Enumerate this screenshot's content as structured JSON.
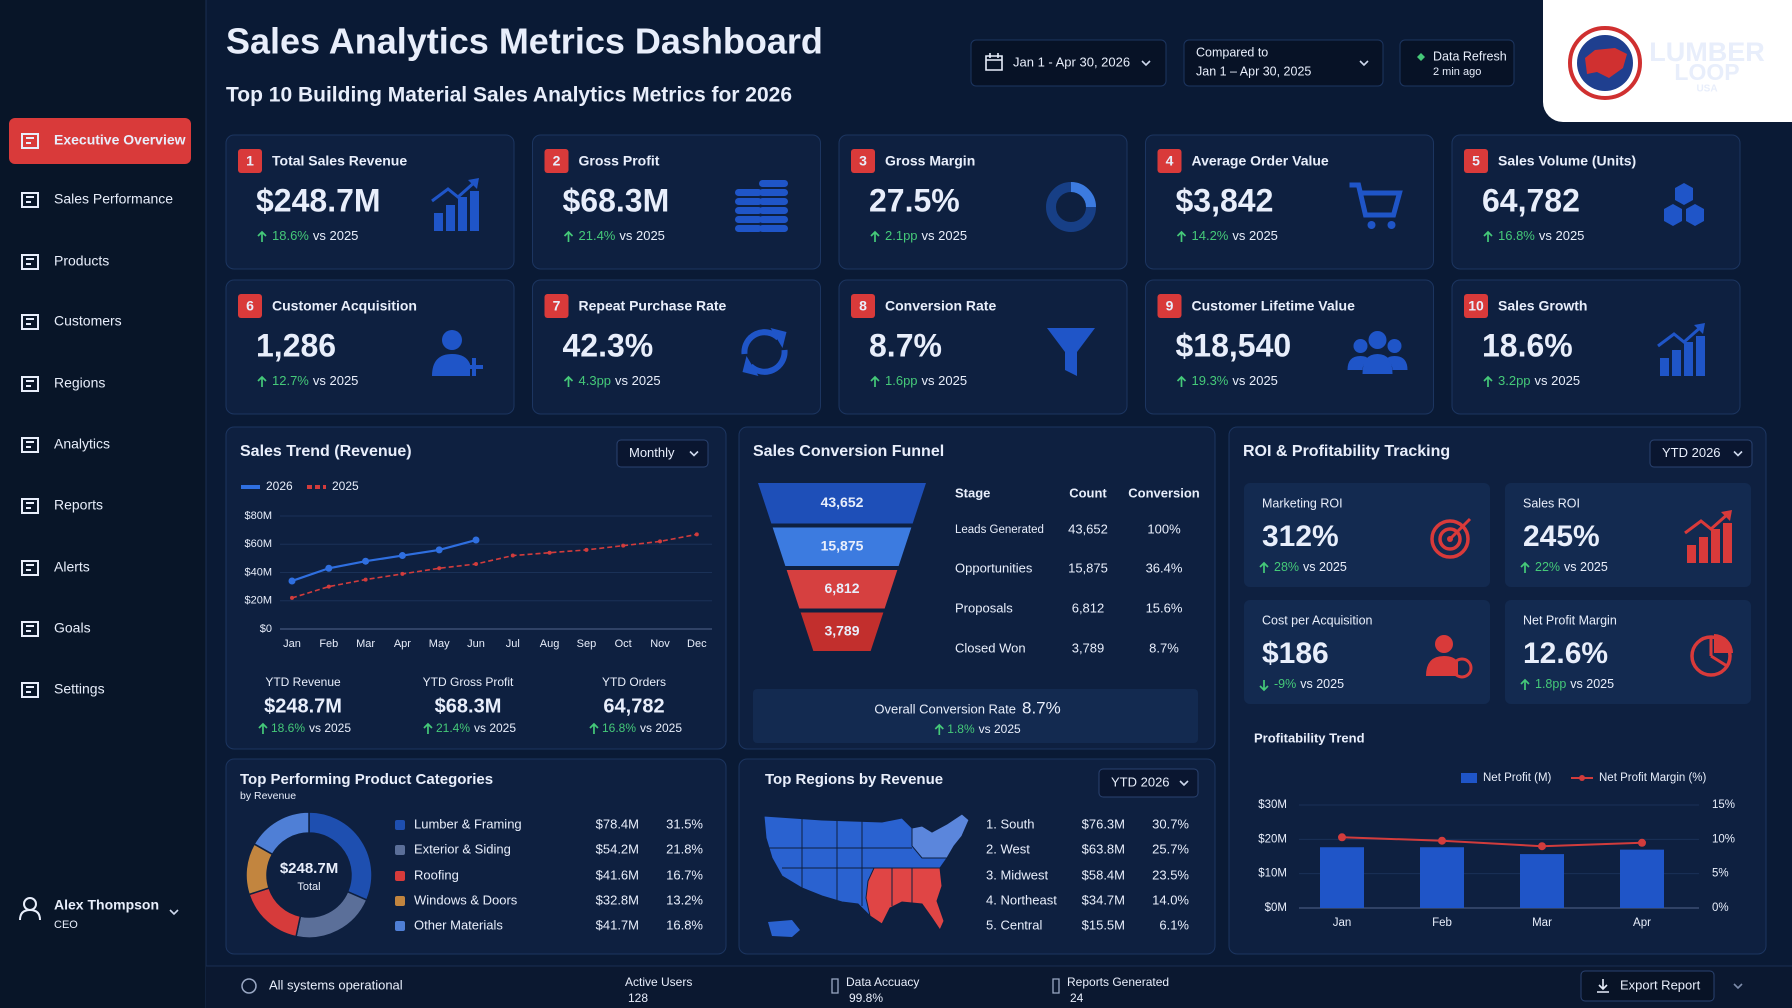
{
  "header": {
    "title": "Sales Analytics Metrics Dashboard",
    "subtitle": "Top 10 Building Material Sales Analytics Metrics for 2026",
    "date_range": "Jan 1 - Apr 30, 2026",
    "compared_label": "Compared to",
    "compared_range": "Jan 1 – Apr 30, 2025",
    "refresh_label": "Data Refresh",
    "refresh_time": "2 min ago"
  },
  "logo": {
    "brand_top": "LUMBER",
    "brand_bottom": "LOOP",
    "brand_sub": "USA"
  },
  "nav": {
    "items": [
      "Executive Overview",
      "Sales Performance",
      "Products",
      "Customers",
      "Regions",
      "Analytics",
      "Reports",
      "Alerts",
      "Goals",
      "Settings"
    ],
    "active": 0
  },
  "user": {
    "name": "Alex Thompson",
    "role": "CEO"
  },
  "kpis": [
    {
      "rank": 1,
      "label": "Total Sales Revenue",
      "value": "$248.7M",
      "change": "18.6%",
      "compare": "vs 2025"
    },
    {
      "rank": 2,
      "label": "Gross Profit",
      "value": "$68.3M",
      "change": "21.4%",
      "compare": "vs 2025"
    },
    {
      "rank": 3,
      "label": "Gross Margin",
      "value": "27.5%",
      "change": "2.1pp",
      "compare": "vs 2025"
    },
    {
      "rank": 4,
      "label": "Average Order Value",
      "value": "$3,842",
      "change": "14.2%",
      "compare": "vs 2025"
    },
    {
      "rank": 5,
      "label": "Sales Volume (Units)",
      "value": "64,782",
      "change": "16.8%",
      "compare": "vs 2025"
    },
    {
      "rank": 6,
      "label": "Customer Acquisition",
      "value": "1,286",
      "change": "12.7%",
      "compare": "vs 2025"
    },
    {
      "rank": 7,
      "label": "Repeat Purchase Rate",
      "value": "42.3%",
      "change": "4.3pp",
      "compare": "vs 2025"
    },
    {
      "rank": 8,
      "label": "Conversion Rate",
      "value": "8.7%",
      "change": "1.6pp",
      "compare": "vs 2025"
    },
    {
      "rank": 9,
      "label": "Customer Lifetime Value",
      "value": "$18,540",
      "change": "19.3%",
      "compare": "vs 2025"
    },
    {
      "rank": 10,
      "label": "Sales Growth",
      "value": "18.6%",
      "change": "3.2pp",
      "compare": "vs 2025"
    }
  ],
  "sales_trend": {
    "type": "line",
    "title": "Sales Trend (Revenue)",
    "period": "Monthly",
    "categories": [
      "Jan",
      "Feb",
      "Mar",
      "Apr",
      "May",
      "Jun",
      "Jul",
      "Aug",
      "Sep",
      "Oct",
      "Nov",
      "Dec"
    ],
    "series": [
      {
        "name": "2026",
        "color": "#2f6fe0",
        "values": [
          34,
          43,
          48,
          52,
          56,
          63,
          null,
          null,
          null,
          null,
          null,
          null
        ]
      },
      {
        "name": "2025",
        "color": "#d23c3c",
        "values": [
          22,
          30,
          35,
          39,
          43,
          46,
          52,
          54,
          56,
          59,
          62,
          67
        ]
      }
    ],
    "ylim": [
      0,
      80
    ],
    "yticks": [
      {
        "value": 0,
        "label": "$0"
      },
      {
        "value": 20,
        "label": "$20M"
      },
      {
        "value": 40,
        "label": "$40M"
      },
      {
        "value": 60,
        "label": "$60M"
      },
      {
        "value": 80,
        "label": "$80M"
      }
    ],
    "grid": true,
    "summary": [
      {
        "label": "YTD Revenue",
        "value": "$248.7M",
        "change": "18.6%",
        "compare": "vs 2025"
      },
      {
        "label": "YTD Gross Profit",
        "value": "$68.3M",
        "change": "21.4%",
        "compare": "vs 2025"
      },
      {
        "label": "YTD Orders",
        "value": "64,782",
        "change": "16.8%",
        "compare": "vs 2025"
      }
    ]
  },
  "funnel": {
    "type": "funnel",
    "title": "Sales Conversion Funnel",
    "headers": [
      "Stage",
      "Count",
      "Conversion"
    ],
    "stages": [
      "Leads Generated",
      "Opportunities",
      "Proposals",
      "Closed Won"
    ],
    "counts": [
      43652,
      15875,
      6812,
      3789
    ],
    "count_labels": [
      "43,652",
      "15,875",
      "6,812",
      "3,789"
    ],
    "conversions": [
      "100%",
      "36.4%",
      "15.6%",
      "8.7%"
    ],
    "colors": [
      "#1e4fb8",
      "#3c7be0",
      "#d64040",
      "#c22f2d"
    ],
    "overall_label": "Overall Conversion Rate",
    "overall_value": "8.7%",
    "overall_change": "1.8%",
    "overall_compare": "vs 2025"
  },
  "roi": {
    "title": "ROI & Profitability Tracking",
    "period": "YTD 2026",
    "tiles": [
      {
        "label": "Marketing ROI",
        "value": "312%",
        "change": "28%",
        "compare": "vs 2025"
      },
      {
        "label": "Sales ROI",
        "value": "245%",
        "change": "22%",
        "compare": "vs 2025"
      },
      {
        "label": "Cost per Acquisition",
        "value": "$186",
        "change": "-9%",
        "compare": "vs 2025"
      },
      {
        "label": "Net Profit Margin",
        "value": "12.6%",
        "change": "1.8pp",
        "compare": "vs 2025"
      }
    ],
    "profitability_trend": {
      "type": "bar",
      "title": "Profitability Trend",
      "categories": [
        "Jan",
        "Feb",
        "Mar",
        "Apr"
      ],
      "series": [
        {
          "name": "Net Profit (M)",
          "color": "#1f55c8",
          "values": [
            17.7,
            17.7,
            15.7,
            17
          ]
        },
        {
          "name": "Net Profit Margin (%)",
          "color": "#d23c3c",
          "type": "line",
          "axis": "y2",
          "values": [
            10.3,
            9.8,
            9.0,
            9.5
          ]
        }
      ],
      "ylim": [
        0,
        30
      ],
      "yticks": [
        {
          "value": 0,
          "label": "$0M"
        },
        {
          "value": 10,
          "label": "$10M"
        },
        {
          "value": 20,
          "label": "$20M"
        },
        {
          "value": 30,
          "label": "$30M"
        }
      ],
      "y2lim": [
        0,
        15
      ],
      "y2ticks": [
        {
          "value": 0,
          "label": "0%"
        },
        {
          "value": 5,
          "label": "5%"
        },
        {
          "value": 10,
          "label": "10%"
        },
        {
          "value": 15,
          "label": "15%"
        }
      ]
    }
  },
  "products": {
    "type": "pie",
    "title": "Top Performing Product Categories",
    "subtitle": "by Revenue",
    "center_value": "$248.7M",
    "center_label": "Total",
    "categories": [
      "Lumber & Framing",
      "Exterior & Siding",
      "Roofing",
      "Windows & Doors",
      "Other Materials"
    ],
    "revenues": [
      "$78.4M",
      "$54.2M",
      "$41.6M",
      "$32.8M",
      "$41.7M"
    ],
    "values": [
      31.5,
      21.8,
      16.7,
      13.2,
      16.8
    ],
    "value_labels": [
      "31.5%",
      "21.8%",
      "16.7%",
      "13.2%",
      "16.8%"
    ],
    "colors": [
      "#1e4fb0",
      "#5b6f99",
      "#d63b3b",
      "#c2853f",
      "#4f7fd6"
    ]
  },
  "regions": {
    "title": "Top Regions by Revenue",
    "period": "YTD 2026",
    "labels": [
      "1. South",
      "2. West",
      "3. Midwest",
      "4. Northeast",
      "5. Central"
    ],
    "revenues": [
      "$76.3M",
      "$63.8M",
      "$58.4M",
      "$34.7M",
      "$15.5M"
    ],
    "shares": [
      "30.7%",
      "25.7%",
      "23.5%",
      "14.0%",
      "6.1%"
    ]
  },
  "footer": {
    "status": "All systems operational",
    "metrics": [
      {
        "label": "Active Users",
        "value": "128"
      },
      {
        "label": "Data Accuacy",
        "value": "99.8%"
      },
      {
        "label": "Reports Generated",
        "value": "24"
      }
    ],
    "export": "Export Report"
  }
}
